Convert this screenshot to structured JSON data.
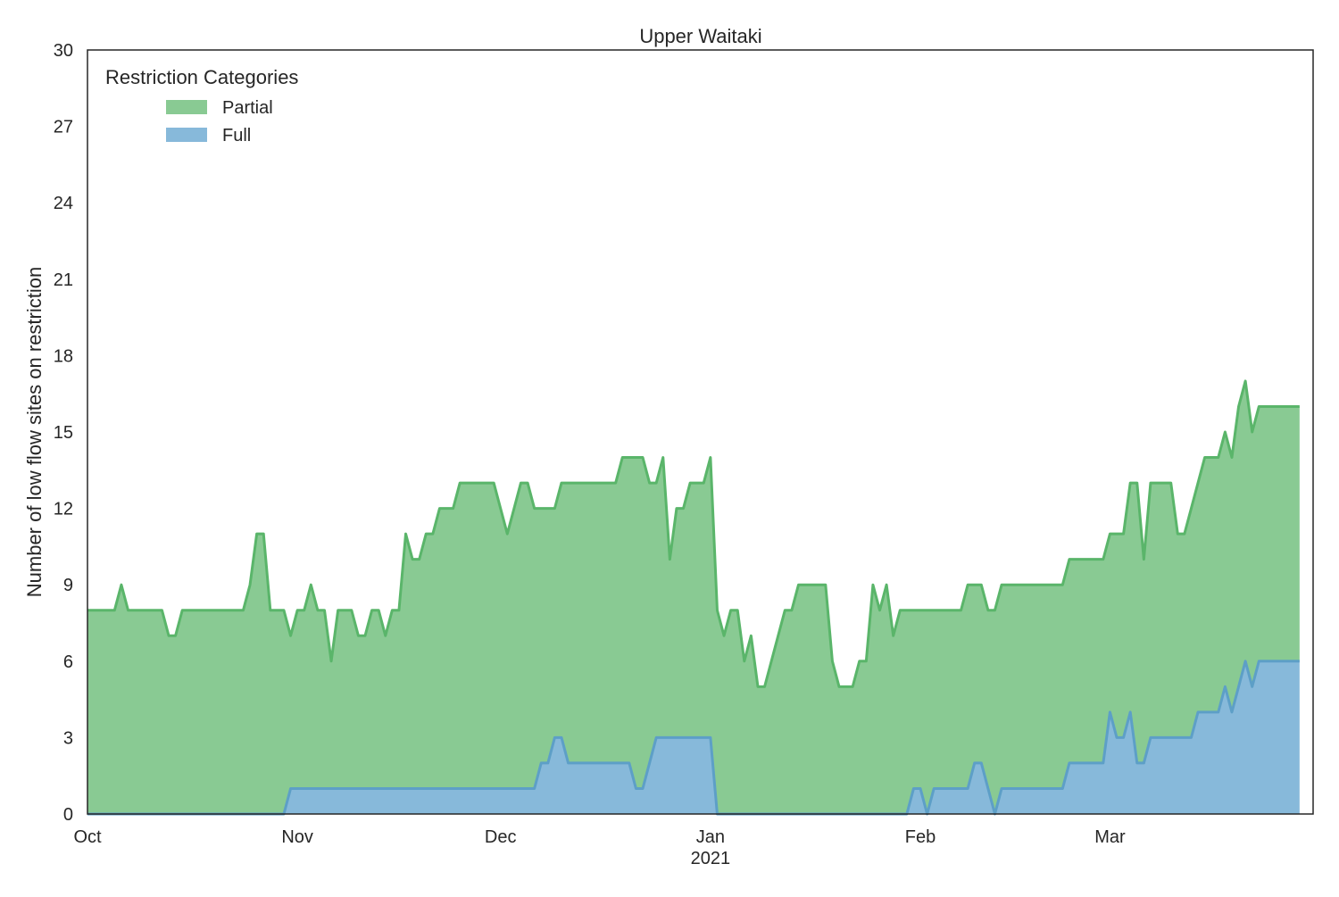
{
  "chart_data": {
    "type": "area",
    "stacked": true,
    "title": "Upper Waitaki",
    "xlabel": "",
    "ylabel": "Number of low flow sites on restriction",
    "ylim": [
      0,
      30
    ],
    "yticks": [
      0,
      3,
      6,
      9,
      12,
      15,
      18,
      21,
      24,
      27,
      30
    ],
    "x_range_days": [
      0,
      181
    ],
    "x_ticks": [
      {
        "day": 0,
        "label": "Oct"
      },
      {
        "day": 31,
        "label": "Nov"
      },
      {
        "day": 61,
        "label": "Dec"
      },
      {
        "day": 92,
        "label": "Jan"
      },
      {
        "day": 123,
        "label": "Feb"
      },
      {
        "day": 151,
        "label": "Mar"
      }
    ],
    "x_year_label": {
      "day": 92,
      "label": "2021"
    },
    "legend": {
      "title": "Restriction Categories",
      "position": "top-left"
    },
    "grid": false,
    "colors": {
      "partial_fill": "#89ca93",
      "partial_line": "#5ab56a",
      "full_fill": "#87b9da",
      "full_line": "#5d9fc7",
      "axis": "#262626"
    },
    "series": [
      {
        "name": "Full",
        "values": [
          0,
          0,
          0,
          0,
          0,
          0,
          0,
          0,
          0,
          0,
          0,
          0,
          0,
          0,
          0,
          0,
          0,
          0,
          0,
          0,
          0,
          0,
          0,
          0,
          0,
          0,
          0,
          0,
          0,
          0,
          1,
          1,
          1,
          1,
          1,
          1,
          1,
          1,
          1,
          1,
          1,
          1,
          1,
          1,
          1,
          1,
          1,
          1,
          1,
          1,
          1,
          1,
          1,
          1,
          1,
          1,
          1,
          1,
          1,
          1,
          1,
          1,
          1,
          1,
          1,
          1,
          1,
          2,
          2,
          3,
          3,
          2,
          2,
          2,
          2,
          2,
          2,
          2,
          2,
          2,
          2,
          1,
          1,
          2,
          3,
          3,
          3,
          3,
          3,
          3,
          3,
          3,
          3,
          0,
          0,
          0,
          0,
          0,
          0,
          0,
          0,
          0,
          0,
          0,
          0,
          0,
          0,
          0,
          0,
          0,
          0,
          0,
          0,
          0,
          0,
          0,
          0,
          0,
          0,
          0,
          0,
          0,
          1,
          1,
          0,
          1,
          1,
          1,
          1,
          1,
          1,
          2,
          2,
          1,
          0,
          1,
          1,
          1,
          1,
          1,
          1,
          1,
          1,
          1,
          1,
          2,
          2,
          2,
          2,
          2,
          2,
          4,
          3,
          3,
          4,
          2,
          2,
          3,
          3,
          3,
          3,
          3,
          3,
          3,
          4,
          4,
          4,
          4,
          5,
          4,
          5,
          6,
          5,
          6,
          6,
          6,
          6,
          6,
          6,
          6
        ]
      },
      {
        "name": "Partial",
        "values": [
          8,
          8,
          8,
          8,
          8,
          9,
          8,
          8,
          8,
          8,
          8,
          8,
          7,
          7,
          8,
          8,
          8,
          8,
          8,
          8,
          8,
          8,
          8,
          8,
          9,
          11,
          11,
          8,
          8,
          8,
          6,
          7,
          7,
          8,
          7,
          7,
          5,
          7,
          7,
          7,
          6,
          6,
          7,
          7,
          6,
          7,
          7,
          10,
          9,
          9,
          10,
          10,
          11,
          11,
          11,
          12,
          12,
          12,
          12,
          12,
          12,
          11,
          10,
          11,
          12,
          12,
          11,
          10,
          10,
          9,
          10,
          11,
          11,
          11,
          11,
          11,
          11,
          11,
          11,
          12,
          12,
          13,
          13,
          11,
          10,
          11,
          7,
          9,
          9,
          10,
          10,
          10,
          11,
          8,
          7,
          8,
          8,
          6,
          7,
          5,
          5,
          6,
          7,
          8,
          8,
          9,
          9,
          9,
          9,
          9,
          6,
          5,
          5,
          5,
          6,
          6,
          9,
          8,
          9,
          7,
          8,
          8,
          7,
          7,
          8,
          7,
          7,
          7,
          7,
          7,
          8,
          7,
          7,
          7,
          8,
          8,
          8,
          8,
          8,
          8,
          8,
          8,
          8,
          8,
          8,
          8,
          8,
          8,
          8,
          8,
          8,
          7,
          8,
          8,
          9,
          11,
          8,
          10,
          10,
          10,
          10,
          8,
          8,
          9,
          9,
          10,
          10,
          10,
          10,
          10,
          11,
          11,
          10,
          10,
          10,
          10,
          10,
          10,
          10,
          10,
          10,
          10
        ]
      }
    ]
  }
}
